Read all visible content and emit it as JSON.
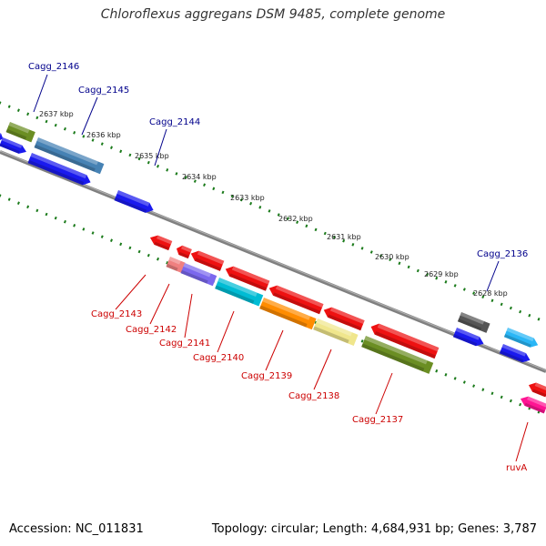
{
  "title": "Chloroflexus aggregans DSM 9485, complete genome",
  "footer": {
    "accession": "Accession: NC_011831",
    "summary": "Topology: circular; Length: 4,684,931 bp; Genes: 3,787"
  },
  "ruler": {
    "ticks": [
      {
        "label": "2637 kbp"
      },
      {
        "label": "2636 kbp"
      },
      {
        "label": "2635 kbp"
      },
      {
        "label": "2634 kbp"
      },
      {
        "label": "2633 kbp"
      },
      {
        "label": "2632 kbp"
      },
      {
        "label": "2631 kbp"
      },
      {
        "label": "2630 kbp"
      },
      {
        "label": "2629 kbp"
      },
      {
        "label": "2628 kbp"
      }
    ]
  },
  "colors": {
    "forward_label": "#00008b",
    "reverse_label": "#cc0000",
    "backbone": "#808080",
    "tick": "#1a7a1a"
  },
  "labels": {
    "forward": [
      "Cagg_2146",
      "Cagg_2145",
      "Cagg_2144",
      "Cagg_2136"
    ],
    "reverse": [
      "Cagg_2143",
      "Cagg_2142",
      "Cagg_2141",
      "Cagg_2140",
      "Cagg_2139",
      "Cagg_2138",
      "Cagg_2137",
      "ruvA"
    ]
  }
}
